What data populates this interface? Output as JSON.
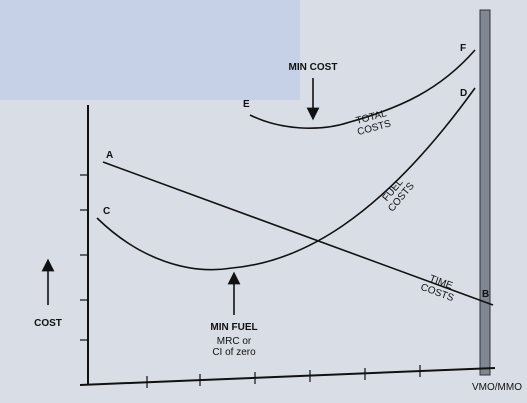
{
  "title": "MIN COST",
  "points": {
    "a": "A",
    "b": "B",
    "c": "C",
    "d": "D",
    "e": "E",
    "f": "F"
  },
  "curves": {
    "total": [
      "TOTAL",
      "COSTS"
    ],
    "fuel": [
      "FUEL",
      "COSTS"
    ],
    "time": [
      "TIME",
      "COSTS"
    ]
  },
  "min_fuel": {
    "label": "MIN FUEL",
    "notes": [
      "MRC or",
      "CI of zero"
    ]
  },
  "y_axis_label": "COST",
  "x_axis_end_label": "VMO/MMO"
}
